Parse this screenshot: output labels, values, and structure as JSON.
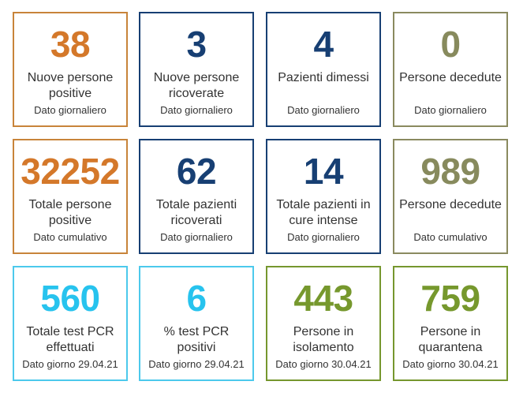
{
  "cards": [
    {
      "value": "38",
      "label": "Nuove persone positive",
      "sub": "Dato giornaliero",
      "color": "#d4782a"
    },
    {
      "value": "3",
      "label": "Nuove persone ricoverate",
      "sub": "Dato giornaliero",
      "color": "#173f73"
    },
    {
      "value": "4",
      "label": "Pazienti dimessi",
      "sub": "Dato giornaliero",
      "color": "#173f73"
    },
    {
      "value": "0",
      "label": "Persone decedute",
      "sub": "Dato giornaliero",
      "color": "#878a5d"
    },
    {
      "value": "32252",
      "label": "Totale persone positive",
      "sub": "Dato cumulativo",
      "color": "#d4782a"
    },
    {
      "value": "62",
      "label": "Totale pazienti ricoverati",
      "sub": "Dato giornaliero",
      "color": "#173f73"
    },
    {
      "value": "14",
      "label": "Totale pazienti in cure intense",
      "sub": "Dato giornaliero",
      "color": "#173f73"
    },
    {
      "value": "989",
      "label": "Persone decedute",
      "sub": "Dato cumulativo",
      "color": "#878a5d"
    },
    {
      "value": "560",
      "label": "Totale test PCR effettuati",
      "sub": "Dato giorno 29.04.21",
      "color": "#27c3ee"
    },
    {
      "value": "6",
      "label": "% test PCR positivi",
      "sub": "Dato giorno 29.04.21",
      "color": "#27c3ee"
    },
    {
      "value": "443",
      "label": "Persone in isolamento",
      "sub": "Dato giorno 30.04.21",
      "color": "#76982d"
    },
    {
      "value": "759",
      "label": "Persone in quarantena",
      "sub": "Dato giorno 30.04.21",
      "color": "#76982d"
    }
  ]
}
